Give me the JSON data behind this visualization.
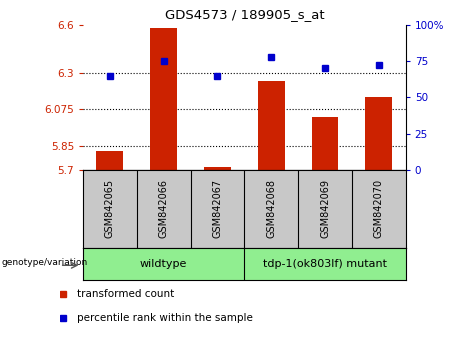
{
  "title": "GDS4573 / 189905_s_at",
  "categories": [
    "GSM842065",
    "GSM842066",
    "GSM842067",
    "GSM842068",
    "GSM842069",
    "GSM842070"
  ],
  "red_values": [
    5.82,
    6.58,
    5.72,
    6.25,
    6.03,
    6.15
  ],
  "blue_values": [
    65,
    75,
    65,
    78,
    70,
    72
  ],
  "left_ylim": [
    5.7,
    6.6
  ],
  "right_ylim": [
    0,
    100
  ],
  "left_yticks": [
    5.7,
    5.85,
    6.075,
    6.3,
    6.6
  ],
  "right_yticks": [
    0,
    25,
    50,
    75,
    100
  ],
  "right_yticklabels": [
    "0",
    "25",
    "50",
    "75",
    "100%"
  ],
  "left_ytick_labels": [
    "5.7",
    "5.85",
    "6.075",
    "6.3",
    "6.6"
  ],
  "hlines": [
    5.85,
    6.075,
    6.3
  ],
  "wildtype_label": "wildtype",
  "mutant_label": "tdp-1(ok803lf) mutant",
  "genotype_label": "genotype/variation",
  "legend_red": "transformed count",
  "legend_blue": "percentile rank within the sample",
  "red_color": "#CC2200",
  "blue_color": "#0000CC",
  "bar_width": 0.5,
  "background_color": "#FFFFFF",
  "green_color": "#90EE90",
  "gray_color": "#C8C8C8"
}
